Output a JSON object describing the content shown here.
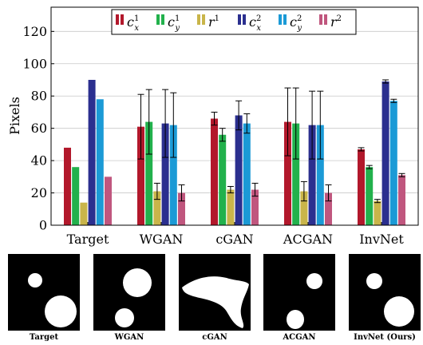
{
  "chart_data": {
    "type": "bar",
    "categories": [
      "Target",
      "WGAN",
      "cGAN",
      "ACGAN",
      "InvNet"
    ],
    "ylabel": "Pixels",
    "ylim": [
      0,
      135
    ],
    "yticks": [
      0,
      20,
      40,
      60,
      80,
      100,
      120
    ],
    "grid": true,
    "legend_position": "top",
    "series": [
      {
        "name": "c_x^1",
        "sym": "c",
        "sub": "x",
        "sup": "1",
        "color": "#b2182b",
        "values": [
          48,
          61,
          66,
          64,
          47
        ],
        "errors": [
          0,
          20,
          4,
          21,
          1
        ]
      },
      {
        "name": "c_y^1",
        "sym": "c",
        "sub": "y",
        "sup": "1",
        "color": "#22b14c",
        "values": [
          36,
          64,
          56,
          63,
          36
        ],
        "errors": [
          0,
          20,
          4,
          22,
          1
        ]
      },
      {
        "name": "r^1",
        "sym": "r",
        "sub": "",
        "sup": "1",
        "color": "#c9b54a",
        "values": [
          14,
          21,
          22,
          21,
          15
        ],
        "errors": [
          0,
          5,
          2,
          6,
          1
        ]
      },
      {
        "name": "c_x^2",
        "sym": "c",
        "sub": "x",
        "sup": "2",
        "color": "#2b2f8f",
        "values": [
          90,
          63,
          68,
          62,
          89
        ],
        "errors": [
          0,
          21,
          9,
          21,
          1
        ]
      },
      {
        "name": "c_y^2",
        "sym": "c",
        "sub": "y",
        "sup": "2",
        "color": "#1b9ad6",
        "values": [
          78,
          62,
          63,
          62,
          77
        ],
        "errors": [
          0,
          20,
          6,
          21,
          1
        ]
      },
      {
        "name": "r^2",
        "sym": "r",
        "sub": "",
        "sup": "2",
        "color": "#c0567e",
        "values": [
          30,
          20,
          22,
          20,
          31
        ],
        "errors": [
          0,
          5,
          4,
          5,
          1
        ]
      }
    ]
  },
  "thumbnails": [
    {
      "label": "Target",
      "shape": "two-circles"
    },
    {
      "label": "WGAN",
      "shape": "two-circles"
    },
    {
      "label": "cGAN",
      "shape": "blob"
    },
    {
      "label": "ACGAN",
      "shape": "two-circles"
    },
    {
      "label": "InvNet (Ours)",
      "shape": "two-circles"
    }
  ]
}
